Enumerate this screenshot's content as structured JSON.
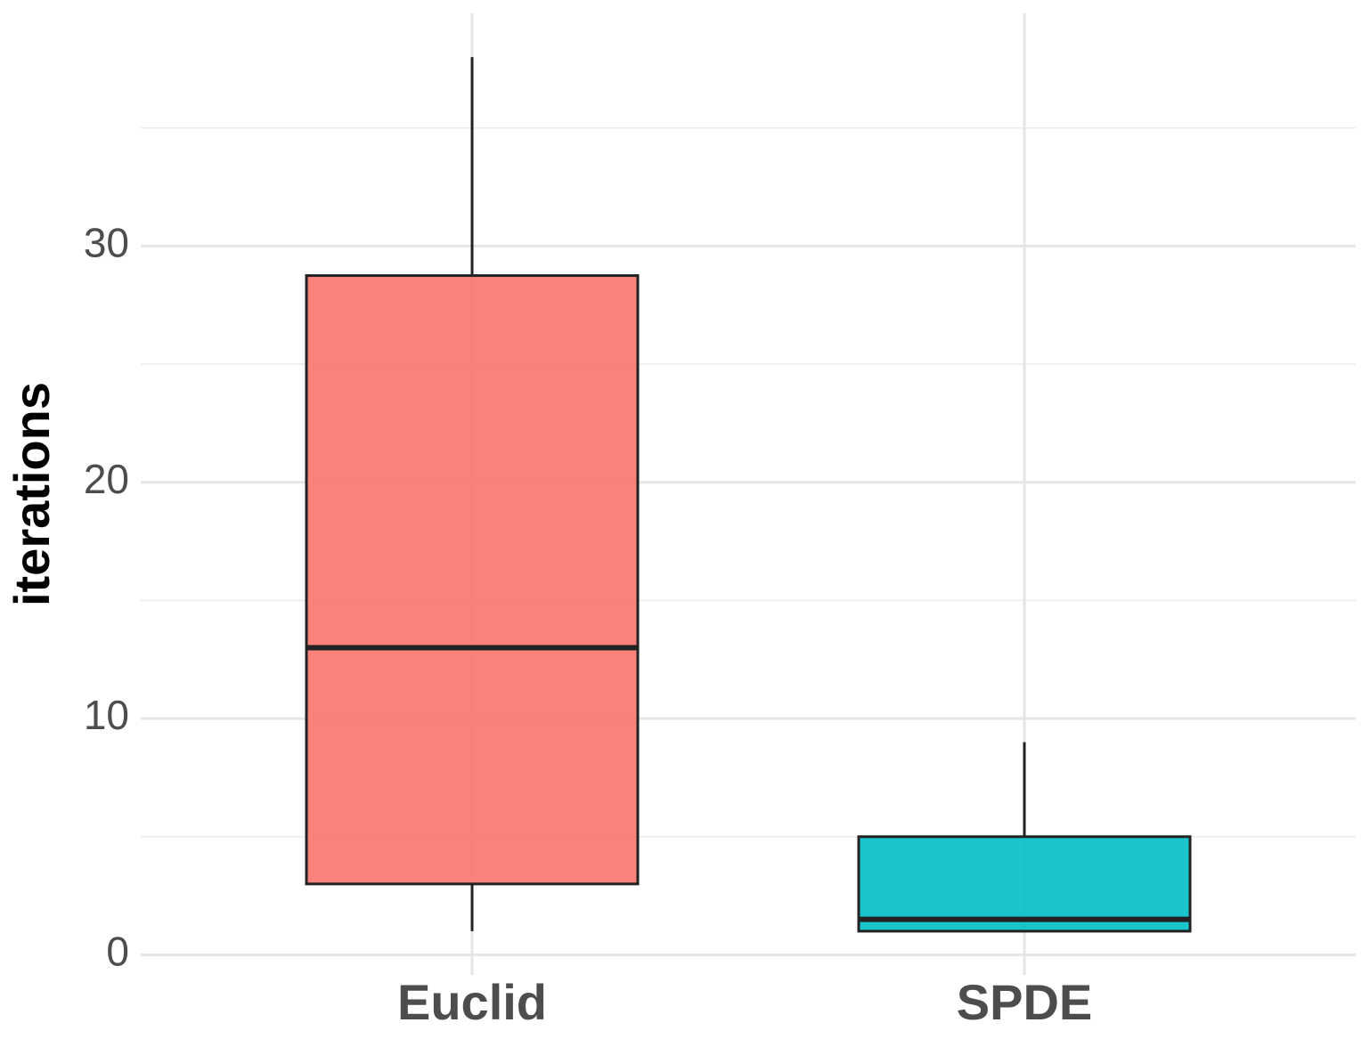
{
  "chart_data": {
    "type": "box",
    "y_label": "iterations",
    "categories": [
      "Euclid",
      "SPDE"
    ],
    "boxes": [
      {
        "min": 1,
        "q1": 3,
        "median": 13,
        "q3": 28.75,
        "max": 38
      },
      {
        "min": 1,
        "q1": 1,
        "median": 1.5,
        "q3": 5,
        "max": 9
      }
    ],
    "colors": [
      "#F8766D",
      "#00BFC4"
    ],
    "ylim": [
      -0.85,
      39.85
    ],
    "yticks": [
      0,
      10,
      20,
      30
    ],
    "minor_yticks": [
      5,
      15,
      25,
      35
    ],
    "grid": true
  }
}
